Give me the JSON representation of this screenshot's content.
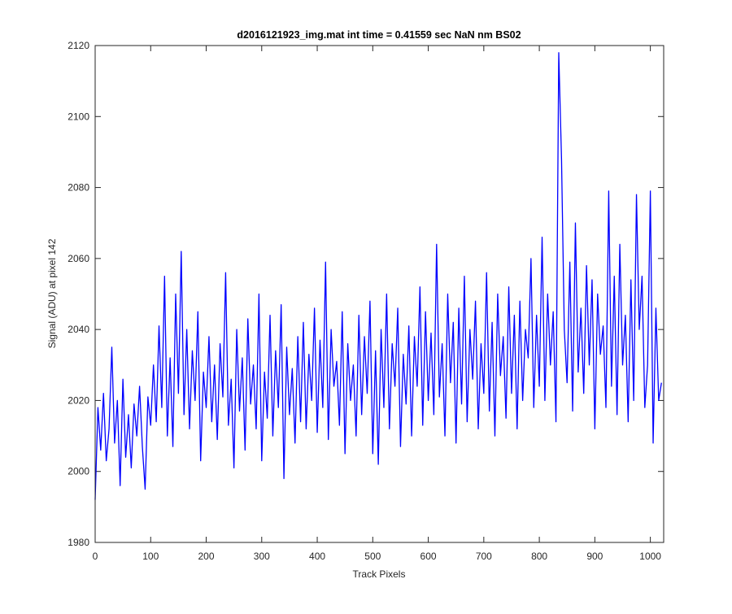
{
  "chart_data": {
    "type": "line",
    "title": "d2016121923_img.mat int time = 0.41559 sec  NaN nm BS02",
    "xlabel": "Track Pixels",
    "ylabel": "Signal (ADU) at pixel 142",
    "xlim": [
      0,
      1024
    ],
    "ylim": [
      1980,
      2120
    ],
    "xticks": [
      0,
      100,
      200,
      300,
      400,
      500,
      600,
      700,
      800,
      900,
      1000
    ],
    "yticks": [
      1980,
      2000,
      2020,
      2040,
      2060,
      2080,
      2100,
      2120
    ],
    "grid": false,
    "x": [
      0,
      5,
      10,
      15,
      20,
      25,
      30,
      35,
      40,
      45,
      50,
      55,
      60,
      65,
      70,
      75,
      80,
      85,
      90,
      95,
      100,
      105,
      110,
      115,
      120,
      125,
      130,
      135,
      140,
      145,
      150,
      155,
      160,
      165,
      170,
      175,
      180,
      185,
      190,
      195,
      200,
      205,
      210,
      215,
      220,
      225,
      230,
      235,
      240,
      245,
      250,
      255,
      260,
      265,
      270,
      275,
      280,
      285,
      290,
      295,
      300,
      305,
      310,
      315,
      320,
      325,
      330,
      335,
      340,
      345,
      350,
      355,
      360,
      365,
      370,
      375,
      380,
      385,
      390,
      395,
      400,
      405,
      410,
      415,
      420,
      425,
      430,
      435,
      440,
      445,
      450,
      455,
      460,
      465,
      470,
      475,
      480,
      485,
      490,
      495,
      500,
      505,
      510,
      515,
      520,
      525,
      530,
      535,
      540,
      545,
      550,
      555,
      560,
      565,
      570,
      575,
      580,
      585,
      590,
      595,
      600,
      605,
      610,
      615,
      620,
      625,
      630,
      635,
      640,
      645,
      650,
      655,
      660,
      665,
      670,
      675,
      680,
      685,
      690,
      695,
      700,
      705,
      710,
      715,
      720,
      725,
      730,
      735,
      740,
      745,
      750,
      755,
      760,
      765,
      770,
      775,
      780,
      785,
      790,
      795,
      800,
      805,
      810,
      815,
      820,
      825,
      830,
      835,
      840,
      845,
      850,
      855,
      860,
      865,
      870,
      875,
      880,
      885,
      890,
      895,
      900,
      905,
      910,
      915,
      920,
      925,
      930,
      935,
      940,
      945,
      950,
      955,
      960,
      965,
      970,
      975,
      980,
      985,
      990,
      995,
      1000,
      1005,
      1010,
      1015,
      1020
    ],
    "series": [
      {
        "color": "#0000ff",
        "values": [
          1992,
          2018,
          2006,
          2022,
          2003,
          2012,
          2035,
          2008,
          2020,
          1996,
          2026,
          2004,
          2016,
          2001,
          2019,
          2010,
          2024,
          2007,
          1995,
          2021,
          2013,
          2030,
          2014,
          2041,
          2018,
          2055,
          2010,
          2032,
          2007,
          2050,
          2022,
          2062,
          2016,
          2040,
          2012,
          2034,
          2020,
          2045,
          2003,
          2028,
          2018,
          2038,
          2014,
          2030,
          2009,
          2036,
          2021,
          2056,
          2013,
          2026,
          2001,
          2040,
          2017,
          2032,
          2006,
          2043,
          2019,
          2030,
          2012,
          2050,
          2003,
          2028,
          2015,
          2044,
          2010,
          2034,
          2018,
          2047,
          1998,
          2035,
          2016,
          2029,
          2008,
          2038,
          2014,
          2042,
          2012,
          2033,
          2020,
          2046,
          2011,
          2037,
          2018,
          2059,
          2009,
          2040,
          2024,
          2031,
          2013,
          2045,
          2005,
          2036,
          2020,
          2030,
          2010,
          2044,
          2016,
          2038,
          2022,
          2048,
          2005,
          2034,
          2002,
          2040,
          2018,
          2050,
          2012,
          2036,
          2024,
          2046,
          2007,
          2033,
          2019,
          2041,
          2010,
          2038,
          2024,
          2052,
          2013,
          2045,
          2020,
          2039,
          2016,
          2064,
          2021,
          2036,
          2010,
          2050,
          2025,
          2042,
          2008,
          2046,
          2019,
          2055,
          2014,
          2040,
          2026,
          2048,
          2012,
          2036,
          2022,
          2056,
          2017,
          2042,
          2010,
          2050,
          2027,
          2038,
          2015,
          2052,
          2022,
          2044,
          2012,
          2048,
          2020,
          2040,
          2032,
          2060,
          2018,
          2044,
          2024,
          2066,
          2020,
          2050,
          2030,
          2045,
          2014,
          2118,
          2088,
          2040,
          2025,
          2059,
          2017,
          2070,
          2028,
          2046,
          2022,
          2058,
          2030,
          2054,
          2012,
          2050,
          2033,
          2041,
          2018,
          2079,
          2024,
          2055,
          2016,
          2064,
          2030,
          2044,
          2014,
          2054,
          2020,
          2078,
          2040,
          2055,
          2018,
          2030,
          2079,
          2008,
          2046,
          2020,
          2025
        ]
      }
    ]
  }
}
